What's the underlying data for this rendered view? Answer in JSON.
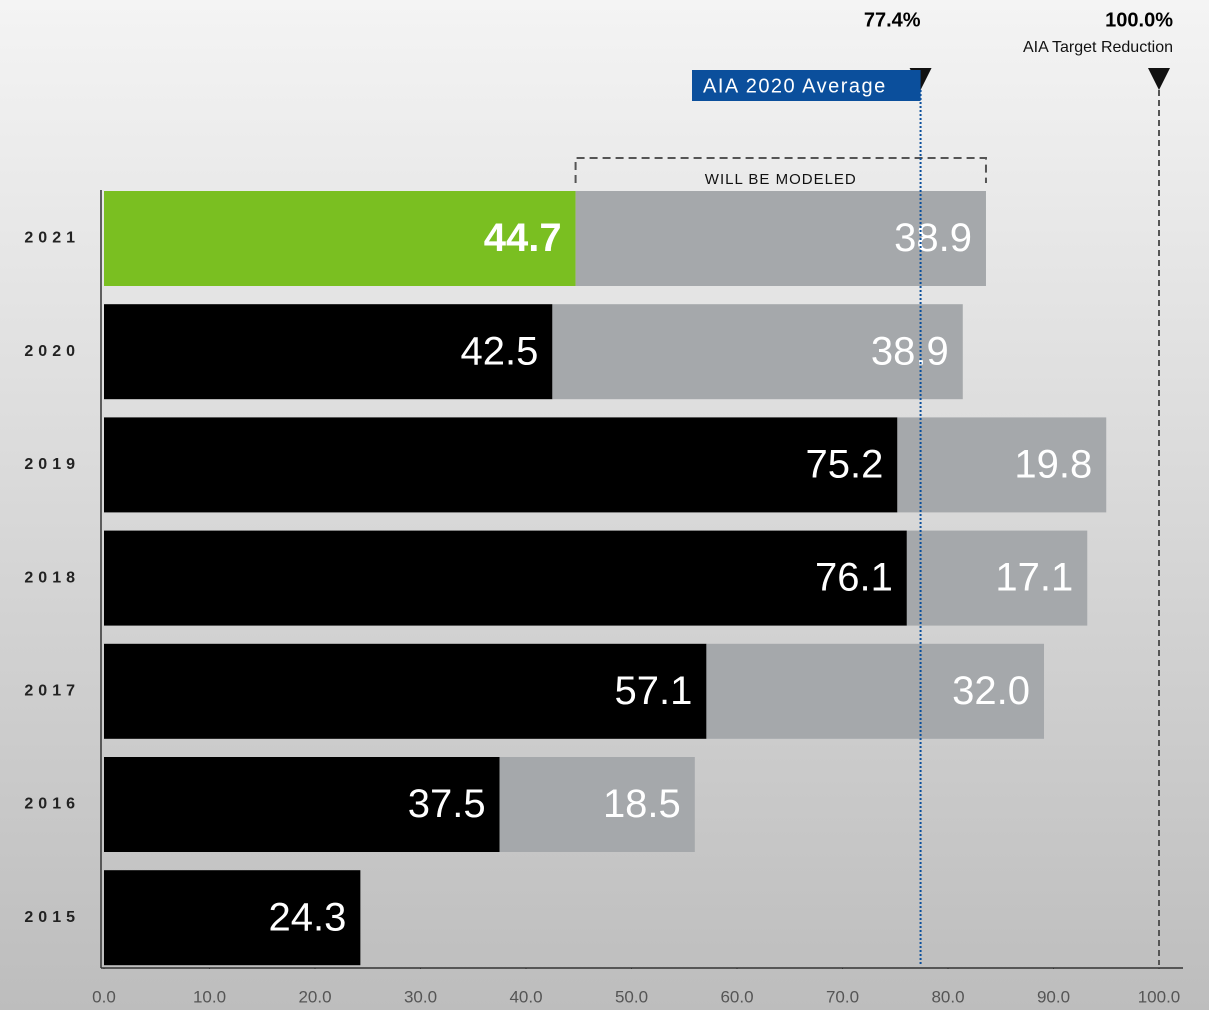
{
  "chart_data": {
    "type": "stacked-bar",
    "orientation": "horizontal",
    "categories": [
      "2021",
      "2020",
      "2019",
      "2018",
      "2017",
      "2016",
      "2015"
    ],
    "series": [
      {
        "color": "#000000",
        "colors": [
          "#7abf21",
          "#000000",
          "#000000",
          "#000000",
          "#000000",
          "#000000",
          "#000000"
        ],
        "values": [
          44.7,
          42.5,
          75.2,
          76.1,
          57.1,
          37.5,
          24.3
        ]
      },
      {
        "color": "#a5a8ab",
        "values": [
          38.9,
          38.9,
          19.8,
          17.1,
          32.0,
          18.5,
          null
        ],
        "value_labels": [
          "38.9",
          "38.9",
          "19.8",
          "17.1",
          "32.0",
          "18.5",
          null
        ]
      }
    ],
    "xlim": [
      0,
      100
    ],
    "xticks": [
      {
        "value": 0,
        "label": "0.0"
      },
      {
        "value": 10,
        "label": "10.0"
      },
      {
        "value": 20,
        "label": "20.0"
      },
      {
        "value": 30,
        "label": "30.0"
      },
      {
        "value": 40,
        "label": "40.0"
      },
      {
        "value": 50,
        "label": "50.0"
      },
      {
        "value": 60,
        "label": "60.0"
      },
      {
        "value": 70,
        "label": "70.0"
      },
      {
        "value": 80,
        "label": "80.0"
      },
      {
        "value": 90,
        "label": "90.0"
      },
      {
        "value": 100,
        "label": "100.0"
      }
    ],
    "reference_lines": [
      {
        "value": 77.4,
        "value_label": "77.4%",
        "label": "AIA 2020 Average",
        "color": "#0b4f9c"
      },
      {
        "value": 100,
        "value_label": "100.0%",
        "label": "AIA Target Reduction",
        "color": "#555555"
      }
    ],
    "bracket_label": "WILL BE MODELED"
  }
}
